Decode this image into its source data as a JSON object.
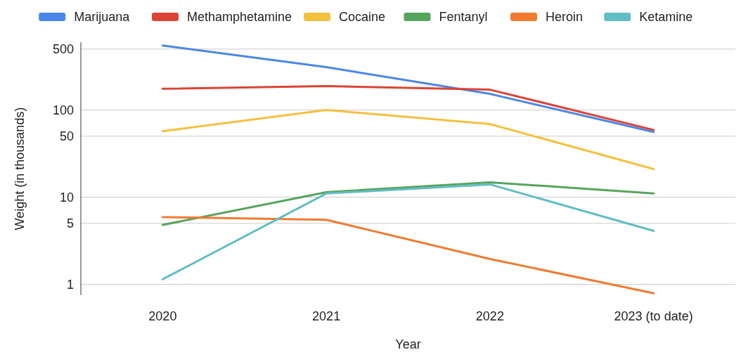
{
  "chart_data": {
    "type": "line",
    "xlabel": "Year",
    "ylabel": "Weight (in thousands)",
    "categories": [
      "2020",
      "2021",
      "2022",
      "2023 (to date)"
    ],
    "log": true,
    "ylim": [
      0.75,
      600
    ],
    "yticks": [
      1,
      5,
      10,
      50,
      100,
      500
    ],
    "grid": "y",
    "legend": "top",
    "marker": "none",
    "line_style": "solid",
    "series": [
      {
        "name": "Marijuana",
        "color": "#4a86e8",
        "values": [
          550,
          310,
          153,
          56
        ]
      },
      {
        "name": "Methamphetamine",
        "color": "#db4437",
        "values": [
          175,
          188,
          171,
          59
        ]
      },
      {
        "name": "Cocaine",
        "color": "#f4c13f",
        "values": [
          57,
          100,
          69,
          21
        ]
      },
      {
        "name": "Fentanyl",
        "color": "#56a55c",
        "values": [
          4.8,
          11.4,
          14.8,
          11
        ]
      },
      {
        "name": "Heroin",
        "color": "#f07b2f",
        "values": [
          5.9,
          5.5,
          1.95,
          0.79
        ]
      },
      {
        "name": "Ketamine",
        "color": "#62bdc4",
        "values": [
          1.14,
          11,
          14,
          4.1
        ]
      }
    ]
  }
}
